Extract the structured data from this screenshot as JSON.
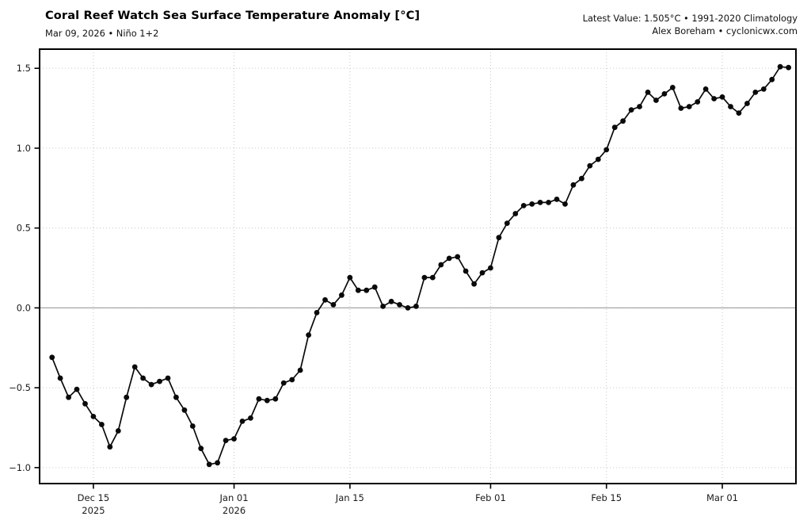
{
  "header": {
    "title": "Coral Reef Watch Sea Surface Temperature Anomaly [°C]",
    "subtitle": "Mar 09, 2026 • Niño 1+2",
    "latest_value": "Latest Value: 1.505°C • 1991-2020 Climatology",
    "credit": "Alex Boreham • cyclonicwx.com"
  },
  "chart_data": {
    "type": "line",
    "title": "Coral Reef Watch Sea Surface Temperature Anomaly [°C]",
    "subtitle": "Mar 09, 2026 • Niño 1+2",
    "series_name": "Niño 1+2 daily SST anomaly",
    "ylabel": "",
    "xlabel": "",
    "grid": true,
    "legend": "none",
    "marker": "filled-circle",
    "latest_value": 1.505,
    "ylim": [
      -1.1,
      1.62
    ],
    "xlim_days": [
      -23.5,
      67.9
    ],
    "y_ticks": [
      {
        "value": 1.5,
        "label": "1.5"
      },
      {
        "value": 1.0,
        "label": "1.0"
      },
      {
        "value": 0.5,
        "label": "0.5"
      },
      {
        "value": 0.0,
        "label": "0.0"
      },
      {
        "value": -0.5,
        "label": "−0.5"
      },
      {
        "value": -1.0,
        "label": "−1.0"
      }
    ],
    "x_ticks": [
      {
        "date": "2025-12-15",
        "label": "Dec 15",
        "sublabel": "2025"
      },
      {
        "date": "2026-01-01",
        "label": "Jan 01",
        "sublabel": "2026"
      },
      {
        "date": "2026-01-15",
        "label": "Jan 15",
        "sublabel": ""
      },
      {
        "date": "2026-02-01",
        "label": "Feb 01",
        "sublabel": ""
      },
      {
        "date": "2026-02-15",
        "label": "Feb 15",
        "sublabel": ""
      },
      {
        "date": "2026-03-01",
        "label": "Mar 01",
        "sublabel": ""
      }
    ],
    "colors": {
      "line": "#0a0a0a",
      "marker": "#0a0a0a",
      "grid": "#c6c6c6",
      "zero_line": "#a6a6a6",
      "frame": "#000000",
      "text": "#1a1a1a"
    },
    "dates": [
      "2025-12-10",
      "2025-12-11",
      "2025-12-12",
      "2025-12-13",
      "2025-12-14",
      "2025-12-15",
      "2025-12-16",
      "2025-12-17",
      "2025-12-18",
      "2025-12-19",
      "2025-12-20",
      "2025-12-21",
      "2025-12-22",
      "2025-12-23",
      "2025-12-24",
      "2025-12-25",
      "2025-12-26",
      "2025-12-27",
      "2025-12-28",
      "2025-12-29",
      "2025-12-30",
      "2025-12-31",
      "2026-01-01",
      "2026-01-02",
      "2026-01-03",
      "2026-01-04",
      "2026-01-05",
      "2026-01-06",
      "2026-01-07",
      "2026-01-08",
      "2026-01-09",
      "2026-01-10",
      "2026-01-11",
      "2026-01-12",
      "2026-01-13",
      "2026-01-14",
      "2026-01-15",
      "2026-01-16",
      "2026-01-17",
      "2026-01-18",
      "2026-01-19",
      "2026-01-20",
      "2026-01-21",
      "2026-01-22",
      "2026-01-23",
      "2026-01-24",
      "2026-01-25",
      "2026-01-26",
      "2026-01-27",
      "2026-01-28",
      "2026-01-29",
      "2026-01-30",
      "2026-01-31",
      "2026-02-01",
      "2026-02-02",
      "2026-02-03",
      "2026-02-04",
      "2026-02-05",
      "2026-02-06",
      "2026-02-07",
      "2026-02-08",
      "2026-02-09",
      "2026-02-10",
      "2026-02-11",
      "2026-02-12",
      "2026-02-13",
      "2026-02-14",
      "2026-02-15",
      "2026-02-16",
      "2026-02-17",
      "2026-02-18",
      "2026-02-19",
      "2026-02-20",
      "2026-02-21",
      "2026-02-22",
      "2026-02-23",
      "2026-02-24",
      "2026-02-25",
      "2026-02-26",
      "2026-02-27",
      "2026-02-28",
      "2026-03-01",
      "2026-03-02",
      "2026-03-03",
      "2026-03-04",
      "2026-03-05",
      "2026-03-06",
      "2026-03-07",
      "2026-03-08",
      "2026-03-09"
    ],
    "values": [
      -0.31,
      -0.44,
      -0.56,
      -0.51,
      -0.6,
      -0.68,
      -0.73,
      -0.87,
      -0.77,
      -0.56,
      -0.37,
      -0.44,
      -0.48,
      -0.46,
      -0.44,
      -0.56,
      -0.64,
      -0.74,
      -0.88,
      -0.98,
      -0.97,
      -0.83,
      -0.82,
      -0.71,
      -0.69,
      -0.57,
      -0.58,
      -0.57,
      -0.47,
      -0.45,
      -0.39,
      -0.17,
      -0.03,
      0.05,
      0.02,
      0.08,
      0.19,
      0.11,
      0.11,
      0.13,
      0.01,
      0.04,
      0.02,
      0.0,
      0.01,
      0.19,
      0.19,
      0.27,
      0.31,
      0.32,
      0.23,
      0.15,
      0.22,
      0.25,
      0.44,
      0.53,
      0.59,
      0.64,
      0.65,
      0.66,
      0.66,
      0.68,
      0.65,
      0.77,
      0.81,
      0.89,
      0.93,
      0.99,
      1.13,
      1.17,
      1.24,
      1.26,
      1.35,
      1.3,
      1.34,
      1.38,
      1.25,
      1.26,
      1.29,
      1.37,
      1.31,
      1.32,
      1.26,
      1.22,
      1.28,
      1.35,
      1.37,
      1.43,
      1.51,
      1.505
    ]
  }
}
